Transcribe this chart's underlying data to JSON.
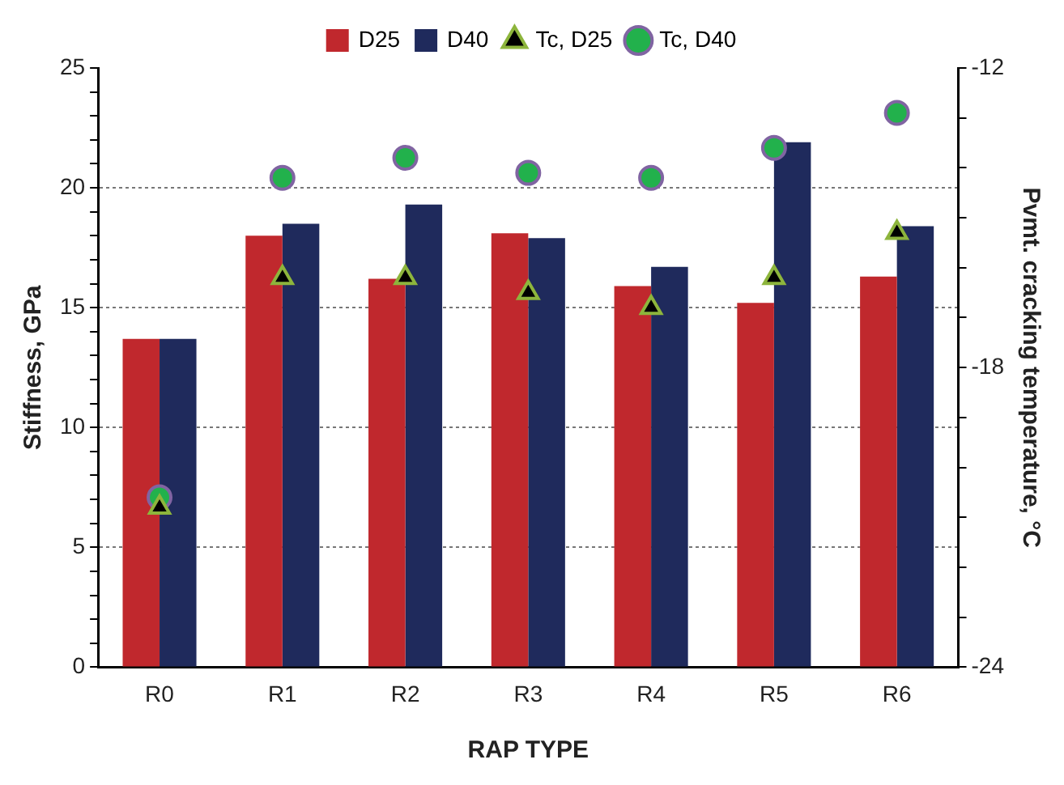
{
  "chart_data": {
    "type": "bar",
    "xlabel": "RAP TYPE",
    "ylabel": "Stiffness, GPa",
    "y2label": "Pvmt. cracking temperature, °C",
    "categories": [
      "R0",
      "R1",
      "R2",
      "R3",
      "R4",
      "R5",
      "R6"
    ],
    "series": [
      {
        "name": "D25",
        "color": "#c0282d",
        "values": [
          13.7,
          18.0,
          16.2,
          18.1,
          15.9,
          15.2,
          16.3
        ]
      },
      {
        "name": "D40",
        "color": "#1f2a5c",
        "values": [
          13.7,
          18.5,
          19.3,
          17.9,
          16.7,
          21.9,
          18.4
        ]
      },
      {
        "name": "Tc, D25",
        "type": "scatter",
        "axis": "y2",
        "marker": "triangle",
        "color": "#000000",
        "values": [
          -20.8,
          -16.2,
          -16.2,
          -16.5,
          -16.8,
          -16.2,
          -15.3
        ]
      },
      {
        "name": "Tc, D40",
        "type": "scatter",
        "axis": "y2",
        "marker": "circle",
        "color": "#22b14c",
        "values": [
          -20.6,
          -14.2,
          -13.8,
          -14.1,
          -14.2,
          -13.6,
          -12.9
        ]
      }
    ],
    "ylim": [
      0,
      25
    ],
    "yticks": [
      0,
      {
        "value": 1,
        "label": null
      },
      {
        "value": 2,
        "label": null
      },
      {
        "value": 3,
        "label": null
      },
      {
        "value": 4,
        "label": null
      },
      5,
      {
        "value": 6,
        "label": null
      },
      {
        "value": 7,
        "label": null
      },
      {
        "value": 8,
        "label": null
      },
      {
        "value": 9,
        "label": null
      },
      10,
      {
        "value": 11,
        "label": null
      },
      {
        "value": 12,
        "label": null
      },
      {
        "value": 13,
        "label": null
      },
      {
        "value": 14,
        "label": null
      },
      15,
      {
        "value": 16,
        "label": null
      },
      {
        "value": 17,
        "label": null
      },
      {
        "value": 18,
        "label": null
      },
      {
        "value": 19,
        "label": null
      },
      20,
      {
        "value": 21,
        "label": null
      },
      {
        "value": 22,
        "label": null
      },
      {
        "value": 23,
        "label": null
      },
      {
        "value": 24,
        "label": null
      },
      25
    ],
    "y2lim": [
      -24,
      -12
    ],
    "y2ticks": [
      -24,
      {
        "value": -23,
        "label": null
      },
      {
        "value": -22,
        "label": null
      },
      {
        "value": -21,
        "label": null
      },
      {
        "value": -20,
        "label": null
      },
      {
        "value": -19,
        "label": null
      },
      -18,
      {
        "value": -17,
        "label": null
      },
      {
        "value": -16,
        "label": null
      },
      {
        "value": -15,
        "label": null
      },
      {
        "value": -14,
        "label": null
      },
      {
        "value": -13,
        "label": null
      },
      -12
    ],
    "grid": "y",
    "legend": "top"
  }
}
